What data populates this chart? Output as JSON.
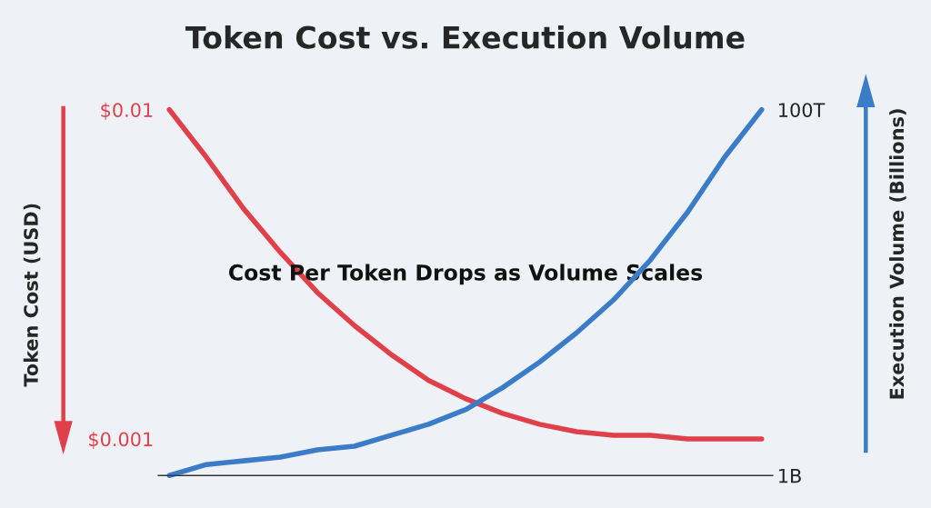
{
  "chart_data": {
    "type": "line",
    "title": "Token Cost vs. Execution Volume",
    "ylabel": "Token Cost (USD)",
    "y2label": "Execution Volume (Billions)",
    "grid": false,
    "marker": "none",
    "line_style": "solid",
    "ylim": [
      0,
      0.01
    ],
    "yticks": [
      {
        "value": 0.001,
        "label": "$0.001"
      },
      {
        "value": 0.01,
        "label": "$0.01"
      }
    ],
    "y2lim": [
      0,
      100000000000000
    ],
    "y2ticks": [
      {
        "value": 1000000000,
        "label": "1B"
      },
      {
        "value": 100000000000000,
        "label": "100T"
      }
    ],
    "categories": [
      null,
      null,
      null,
      null,
      null,
      null,
      null,
      null,
      null,
      null,
      null,
      null,
      null,
      null,
      null,
      null,
      null
    ],
    "series": [
      {
        "color": "#e0404a",
        "values": [
          0.01,
          0.0087,
          0.0073,
          0.0061,
          0.005,
          0.0041,
          0.0033,
          0.0026,
          0.0021,
          0.0017,
          0.0014,
          0.0012,
          0.0011,
          0.0011,
          0.001,
          0.001,
          0.001
        ]
      },
      {
        "color": "#3a7cc8",
        "axis": "y2",
        "values": [
          1000000000,
          3000000000000,
          4000000000000,
          5000000000000,
          7000000000000,
          8000000000000,
          11000000000000,
          14000000000000,
          18000000000000,
          24000000000000,
          31000000000000,
          39000000000000,
          48000000000000,
          59000000000000,
          72000000000000,
          87000000000000,
          100000000000000
        ]
      }
    ],
    "annotations": [
      "Cost Per Token Drops as Volume Scales"
    ]
  }
}
